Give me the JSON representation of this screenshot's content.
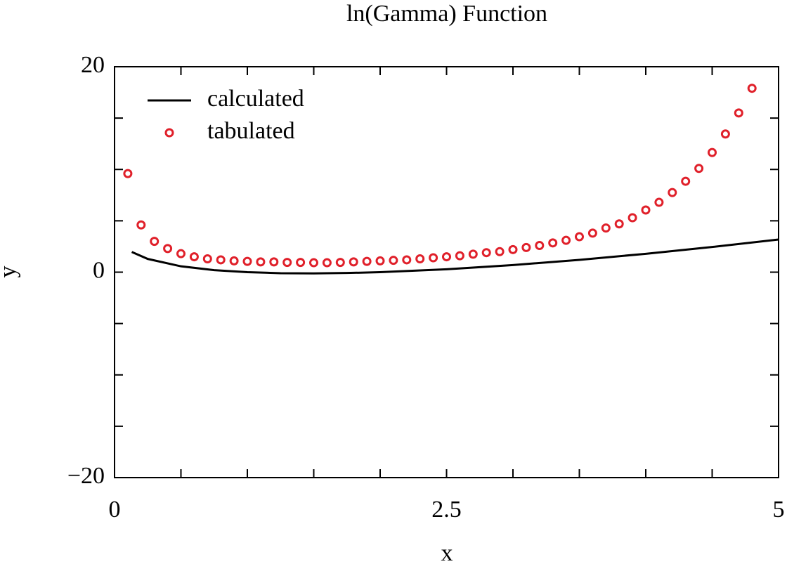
{
  "chart_data": {
    "type": "line",
    "title": "ln(Gamma) Function",
    "x_label": "x",
    "y_label": "y",
    "xlim": [
      0,
      5
    ],
    "ylim": [
      -20,
      20
    ],
    "xticks": [
      0,
      2.5,
      5
    ],
    "yticks": [
      {
        "value": -20,
        "label": "−20"
      },
      0,
      20
    ],
    "x_minor_ticks": [
      0.5,
      1,
      1.5,
      2,
      3,
      3.5,
      4,
      4.5
    ],
    "y_minor_ticks": [
      -15,
      -10,
      -5,
      5,
      10,
      15
    ],
    "legend": "upper left",
    "series": [
      {
        "name": "calculated",
        "style": "line",
        "color": "#000000",
        "x": [
          0.13,
          0.25,
          0.5,
          0.75,
          1,
          1.25,
          1.5,
          1.75,
          2,
          2.5,
          3,
          3.5,
          4,
          4.5,
          5
        ],
        "values": [
          1.97,
          1.29,
          0.57,
          0.2,
          0,
          -0.1,
          -0.12,
          -0.08,
          0,
          0.28,
          0.69,
          1.2,
          1.79,
          2.45,
          3.18
        ]
      },
      {
        "name": "tabulated",
        "style": "markers",
        "color": "#e0202a",
        "x": [
          0.1,
          0.2,
          0.3,
          0.4,
          0.5,
          0.6,
          0.7,
          0.8,
          0.9,
          1.0,
          1.1,
          1.2,
          1.3,
          1.4,
          1.5,
          1.6,
          1.7,
          1.8,
          1.9,
          2.0,
          2.1,
          2.2,
          2.3,
          2.4,
          2.5,
          2.6,
          2.7,
          2.8,
          2.9,
          3.0,
          3.1,
          3.2,
          3.3,
          3.4,
          3.5,
          3.6,
          3.7,
          3.8,
          3.9,
          4.0,
          4.1,
          4.2,
          4.3,
          4.4,
          4.5,
          4.6,
          4.7,
          4.8
        ],
        "values": [
          9.6,
          4.6,
          3.0,
          2.3,
          1.8,
          1.5,
          1.3,
          1.2,
          1.1,
          1.05,
          1.0,
          1.0,
          0.95,
          0.95,
          0.92,
          0.92,
          0.95,
          1.0,
          1.05,
          1.1,
          1.15,
          1.2,
          1.3,
          1.4,
          1.5,
          1.6,
          1.75,
          1.9,
          2.0,
          2.2,
          2.4,
          2.6,
          2.85,
          3.1,
          3.45,
          3.8,
          4.3,
          4.7,
          5.3,
          6.05,
          6.8,
          7.75,
          8.85,
          10.1,
          11.65,
          13.45,
          15.5,
          17.9
        ]
      }
    ]
  }
}
